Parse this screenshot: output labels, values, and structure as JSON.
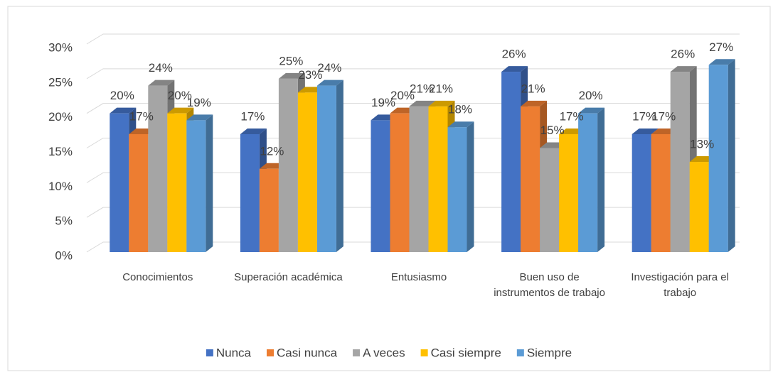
{
  "chart_data": {
    "type": "bar3d",
    "categories": [
      "Conocimientos",
      "Superación académica",
      "Entusiasmo",
      "Buen uso de instrumentos de trabajo",
      "Investigación para el trabajo"
    ],
    "series": [
      {
        "name": "Nunca",
        "color": "#4472c4",
        "values": [
          20,
          17,
          19,
          26,
          17
        ],
        "value_labels": [
          "20%",
          "17%",
          "19%",
          "26%",
          "17%"
        ]
      },
      {
        "name": "Casi nunca",
        "color": "#ed7d31",
        "values": [
          17,
          12,
          20,
          21,
          17
        ],
        "value_labels": [
          "17%",
          "12%",
          "20%",
          "21%",
          "17%"
        ]
      },
      {
        "name": "A veces",
        "color": "#a5a5a5",
        "values": [
          24,
          25,
          21,
          15,
          26
        ],
        "value_labels": [
          "24%",
          "25%",
          "21%",
          "15%",
          "26%"
        ]
      },
      {
        "name": "Casi siempre",
        "color": "#ffc000",
        "values": [
          20,
          23,
          21,
          17,
          13
        ],
        "value_labels": [
          "20%",
          "23%",
          "21%",
          "17%",
          "13%"
        ]
      },
      {
        "name": "Siempre",
        "color": "#5b9bd5",
        "values": [
          19,
          24,
          18,
          20,
          27
        ],
        "value_labels": [
          "19%",
          "24%",
          "18%",
          "20%",
          "27%"
        ]
      }
    ],
    "ylim": [
      0,
      30
    ],
    "yticks": [
      {
        "value": 0,
        "label": "0%"
      },
      {
        "value": 5,
        "label": "5%"
      },
      {
        "value": 10,
        "label": "10%"
      },
      {
        "value": 15,
        "label": "15%"
      },
      {
        "value": 20,
        "label": "20%"
      },
      {
        "value": 25,
        "label": "25%"
      },
      {
        "value": 30,
        "label": "30%"
      }
    ],
    "grid": true,
    "legend": "bottom"
  }
}
